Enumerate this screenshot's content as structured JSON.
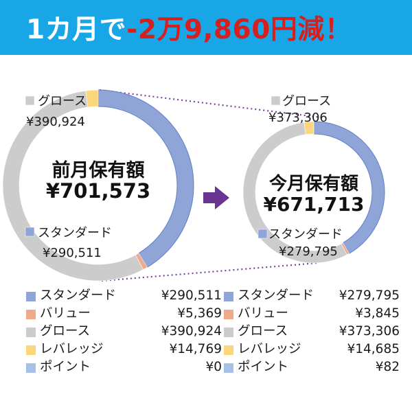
{
  "header": {
    "title_prefix": "1カ月で",
    "title_highlight": "-2万9,860円減！"
  },
  "colors": {
    "banner": "#19a6e6",
    "highlight": "#d61f1f",
    "standard": "#8fa5d8",
    "value": "#efaa8a",
    "growth": "#cccccc",
    "leverage": "#fcd67b",
    "point": "#a7c0e6",
    "connector": "#7a3fa0",
    "arrow": "#6a3590"
  },
  "chart_data": [
    {
      "type": "pie",
      "donut": true,
      "center_label": "前月保有額",
      "center_value": "¥701,573",
      "slices": [
        {
          "name": "スタンダード",
          "value": 290511,
          "display": "¥290,511"
        },
        {
          "name": "バリュー",
          "value": 5369,
          "display": "¥5,369"
        },
        {
          "name": "グロース",
          "value": 390924,
          "display": "¥390,924"
        },
        {
          "name": "レバレッジ",
          "value": 14769,
          "display": "¥14,769"
        },
        {
          "name": "ポイント",
          "value": 0,
          "display": "¥0"
        }
      ]
    },
    {
      "type": "pie",
      "donut": true,
      "center_label": "今月保有額",
      "center_value": "¥671,713",
      "slices": [
        {
          "name": "スタンダード",
          "value": 279795,
          "display": "¥279,795"
        },
        {
          "name": "バリュー",
          "value": 3845,
          "display": "¥3,845"
        },
        {
          "name": "グロース",
          "value": 373306,
          "display": "¥373,306"
        },
        {
          "name": "レバレッジ",
          "value": 14685,
          "display": "¥14,685"
        },
        {
          "name": "ポイント",
          "value": 82,
          "display": "¥82"
        }
      ]
    }
  ],
  "callouts": {
    "left_growth": {
      "name": "グロース",
      "value": "¥390,924"
    },
    "left_standard": {
      "name": "スタンダード",
      "value": "¥290,511"
    },
    "right_growth": {
      "name": "グロース",
      "value": "¥373,306"
    },
    "right_standard": {
      "name": "スタンダード",
      "value": "¥279,795"
    }
  }
}
